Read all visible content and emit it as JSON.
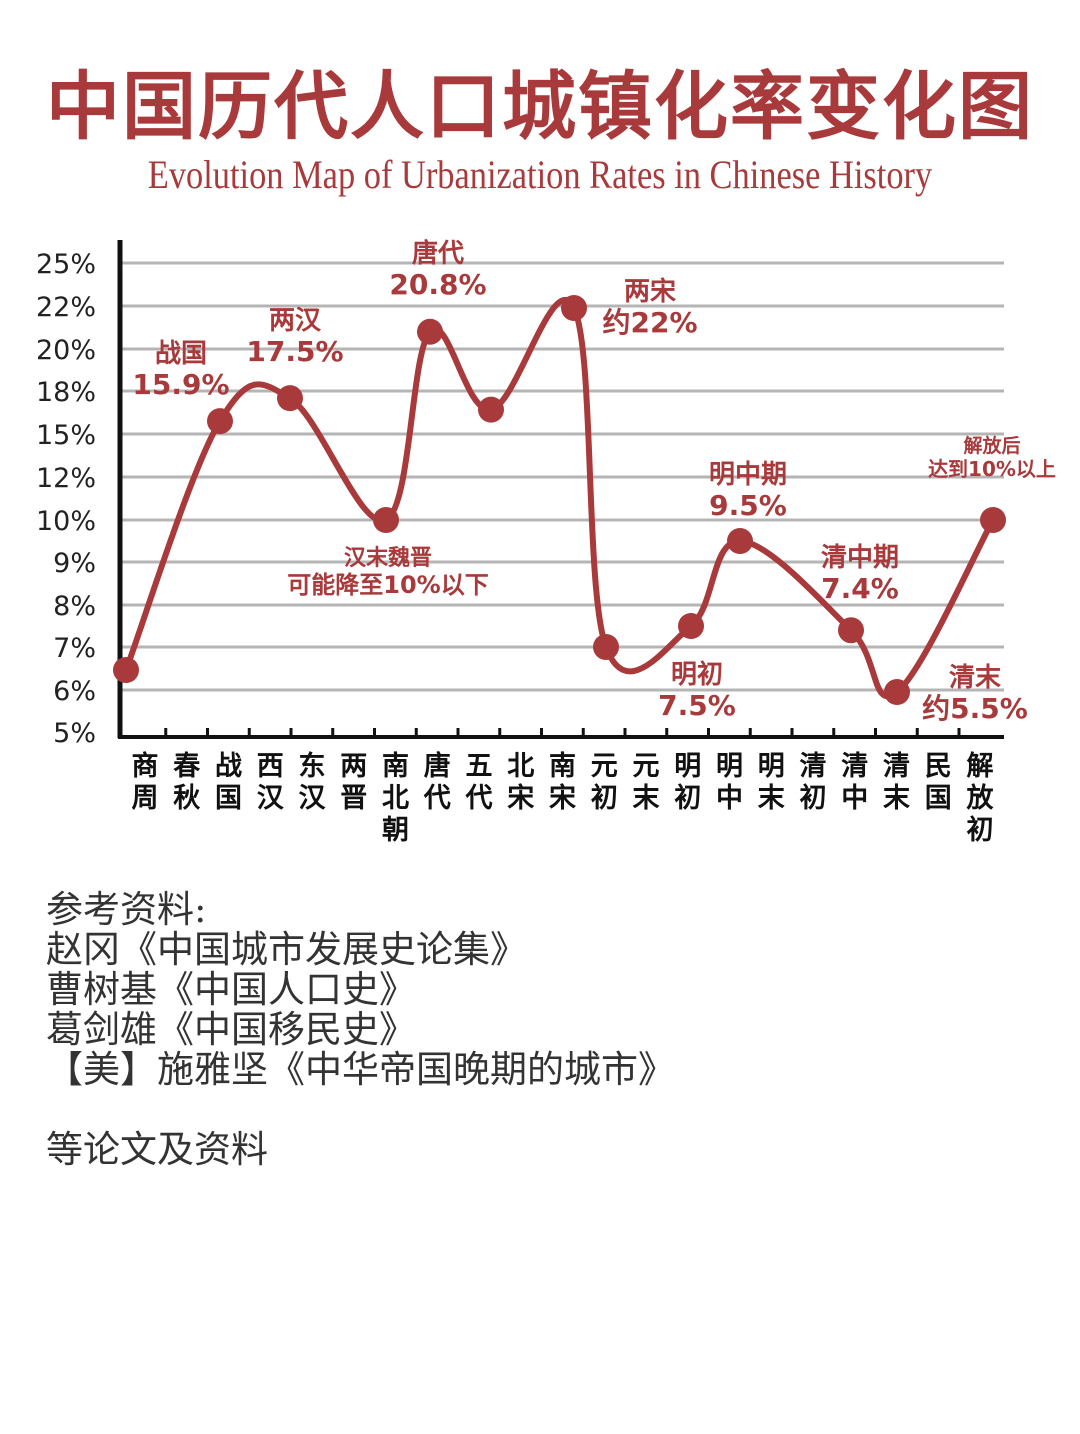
{
  "header": {
    "title_cn": "中国历代人口城镇化率变化图",
    "title_en": "Evolution Map of Urbanization Rates in Chinese History"
  },
  "colors": {
    "accent": "#a83a3c",
    "axis": "#111111",
    "grid": "#b5b5b5",
    "tick_label": "#222222",
    "reference_text": "#333333"
  },
  "chart_data": {
    "type": "line",
    "title": "中国历代人口城镇化率变化图",
    "subtitle": "Evolution Map of Urbanization Rates in Chinese History",
    "xlabel": "",
    "ylabel": "",
    "grid": true,
    "legend": "none",
    "y_ticks": [
      "25%",
      "22%",
      "20%",
      "18%",
      "15%",
      "12%",
      "10%",
      "9%",
      "8%",
      "7%",
      "6%",
      "5%"
    ],
    "categories": [
      "商周",
      "春秋",
      "战国",
      "西汉",
      "东汉",
      "两晋",
      "南北朝",
      "唐代",
      "五代",
      "北宋",
      "南宋",
      "元初",
      "元末",
      "明初",
      "明中",
      "明末",
      "清初",
      "清中",
      "清末",
      "民国",
      "解放初"
    ],
    "category_label_lines": [
      [
        "商",
        "周"
      ],
      [
        "春",
        "秋"
      ],
      [
        "战",
        "国"
      ],
      [
        "西",
        "汉"
      ],
      [
        "东",
        "汉"
      ],
      [
        "两",
        "晋"
      ],
      [
        "南",
        "北",
        "朝"
      ],
      [
        "唐",
        "代"
      ],
      [
        "五",
        "代"
      ],
      [
        "北",
        "宋"
      ],
      [
        "南",
        "宋"
      ],
      [
        "元",
        "初"
      ],
      [
        "元",
        "末"
      ],
      [
        "明",
        "初"
      ],
      [
        "明",
        "中"
      ],
      [
        "明",
        "末"
      ],
      [
        "清",
        "初"
      ],
      [
        "清",
        "中"
      ],
      [
        "清",
        "末"
      ],
      [
        "民",
        "国"
      ],
      [
        "解",
        "放",
        "初"
      ]
    ],
    "series": [
      {
        "name": "城镇化率",
        "points": [
          {
            "label": "商周",
            "value": 6.5
          },
          {
            "label": "战国",
            "value": 15.9
          },
          {
            "label": "两汉",
            "value": 17.5
          },
          {
            "label": "汉末魏晋",
            "value": 10
          },
          {
            "label": "唐代",
            "value": 20.8
          },
          {
            "label": "五代/北宋",
            "value": 16.7
          },
          {
            "label": "两宋",
            "value": 22
          },
          {
            "label": "元初",
            "value": 7
          },
          {
            "label": "明初",
            "value": 7.5
          },
          {
            "label": "明中期",
            "value": 9.5
          },
          {
            "label": "清中期",
            "value": 7.4
          },
          {
            "label": "清末",
            "value": 5.5
          },
          {
            "label": "解放后",
            "value": 10
          }
        ]
      }
    ],
    "annotations": [
      {
        "lines": [
          "战国",
          "15.9%"
        ]
      },
      {
        "lines": [
          "两汉",
          "17.5%"
        ]
      },
      {
        "lines": [
          "唐代",
          "20.8%"
        ]
      },
      {
        "lines": [
          "两宋",
          "约22%"
        ]
      },
      {
        "lines": [
          "汉末魏晋",
          "可能降至10%以下"
        ]
      },
      {
        "lines": [
          "明中期",
          "9.5%"
        ]
      },
      {
        "lines": [
          "清中期",
          "7.4%"
        ]
      },
      {
        "lines": [
          "明初",
          "7.5%"
        ]
      },
      {
        "lines": [
          "清末",
          "约5.5%"
        ]
      },
      {
        "lines": [
          "解放后",
          "达到10%以上"
        ]
      }
    ]
  },
  "references": {
    "heading": "参考资料:",
    "items": [
      "赵冈《中国城市发展史论集》",
      "曹树基《中国人口史》",
      "葛剑雄《中国移民史》",
      "【美】施雅坚《中华帝国晚期的城市》"
    ],
    "footer": "等论文及资料"
  }
}
